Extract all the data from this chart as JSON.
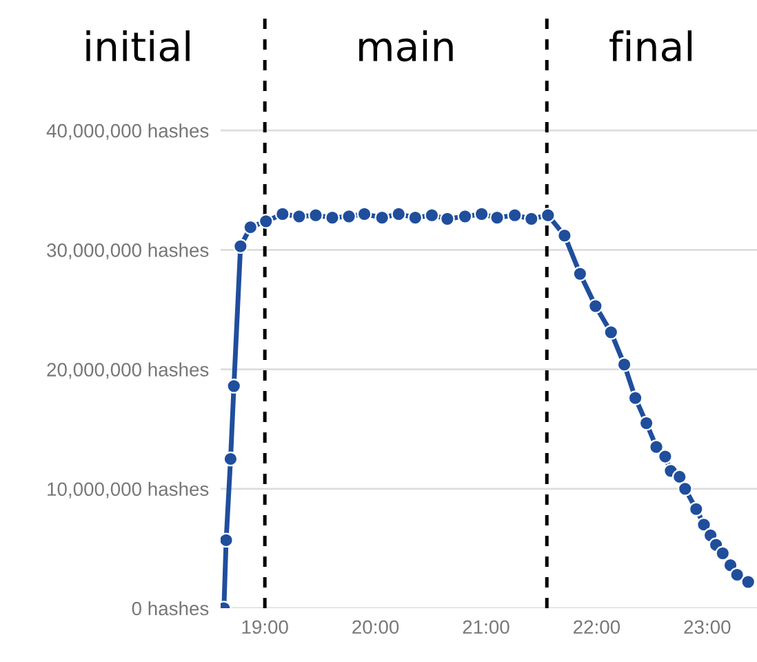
{
  "chart_data": {
    "type": "line",
    "annotations": [
      "initial",
      "main",
      "final"
    ],
    "series": [
      {
        "color": "#1f4e9c",
        "x": [
          18.63,
          18.65,
          18.69,
          18.72,
          18.78,
          18.87,
          19.01,
          19.16,
          19.31,
          19.46,
          19.61,
          19.76,
          19.9,
          20.06,
          20.21,
          20.36,
          20.51,
          20.65,
          20.81,
          20.96,
          21.1,
          21.26,
          21.41,
          21.56,
          21.71,
          21.85,
          21.99,
          22.13,
          22.25,
          22.35,
          22.45,
          22.54,
          22.62,
          22.67,
          22.75,
          22.8,
          22.9,
          22.97,
          23.03,
          23.08,
          23.14,
          23.21,
          23.27,
          23.37
        ],
        "values": [
          0,
          5700000,
          12500000,
          18600000,
          30300000,
          31900000,
          32400000,
          33000000,
          32800000,
          32900000,
          32700000,
          32800000,
          33000000,
          32700000,
          33000000,
          32700000,
          32900000,
          32600000,
          32800000,
          33000000,
          32700000,
          32900000,
          32600000,
          32900000,
          31200000,
          28000000,
          25300000,
          23100000,
          20400000,
          17600000,
          15500000,
          13500000,
          12700000,
          11500000,
          11000000,
          10000000,
          8300000,
          7000000,
          6100000,
          5300000,
          4600000,
          3600000,
          2800000,
          2200000
        ]
      }
    ],
    "xlim": [
      18.6,
      23.45
    ],
    "xticks": [
      {
        "value": 19,
        "label": "19:00"
      },
      {
        "value": 20,
        "label": "20:00"
      },
      {
        "value": 21,
        "label": "21:00"
      },
      {
        "value": 22,
        "label": "22:00"
      },
      {
        "value": 23,
        "label": "23:00"
      }
    ],
    "ylim": [
      0,
      50000000
    ],
    "yticks": [
      {
        "value": 0,
        "label": "0 hashes"
      },
      {
        "value": 10000000,
        "label": "10,000,000 hashes"
      },
      {
        "value": 20000000,
        "label": "20,000,000 hashes"
      },
      {
        "value": 30000000,
        "label": "30,000,000 hashes"
      },
      {
        "value": 40000000,
        "label": "40,000,000 hashes"
      }
    ],
    "ref_lines": [
      {
        "axis": "x",
        "value": 19.0,
        "color": "#000000",
        "line_style": "dashed"
      },
      {
        "axis": "x",
        "value": 21.55,
        "color": "#000000",
        "line_style": "dashed"
      }
    ],
    "grid": "y",
    "marker": "circle",
    "line_style": "solid",
    "legend": false
  }
}
